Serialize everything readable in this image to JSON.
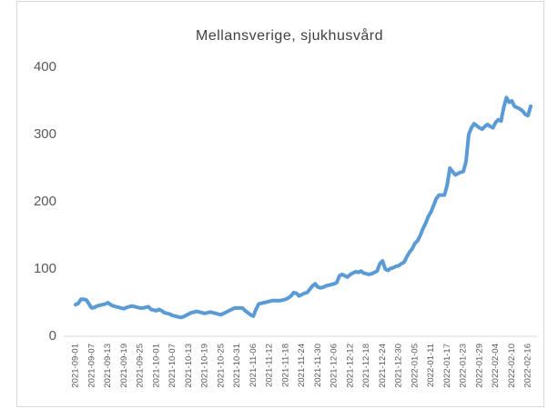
{
  "chart_data": {
    "type": "line",
    "title": "Mellansverige, sjukhusvård",
    "categories": [
      "2021-09-01",
      null,
      null,
      null,
      null,
      null,
      "2021-09-07",
      null,
      null,
      null,
      null,
      null,
      "2021-09-13",
      null,
      null,
      null,
      null,
      null,
      "2021-09-19",
      null,
      null,
      null,
      null,
      null,
      "2021-09-25",
      null,
      null,
      null,
      null,
      null,
      "2021-10-01",
      null,
      null,
      null,
      null,
      null,
      "2021-10-07",
      null,
      null,
      null,
      null,
      null,
      "2021-10-13",
      null,
      null,
      null,
      null,
      null,
      "2021-10-19",
      null,
      null,
      null,
      null,
      null,
      "2021-10-25",
      null,
      null,
      null,
      null,
      null,
      "2021-10-31",
      null,
      null,
      null,
      null,
      null,
      "2021-11-06",
      null,
      null,
      null,
      null,
      null,
      "2021-11-12",
      null,
      null,
      null,
      null,
      null,
      "2021-11-18",
      null,
      null,
      null,
      null,
      null,
      "2021-11-24",
      null,
      null,
      null,
      null,
      null,
      "2021-11-30",
      null,
      null,
      null,
      null,
      null,
      "2021-12-06",
      null,
      null,
      null,
      null,
      null,
      "2021-12-12",
      null,
      null,
      null,
      null,
      null,
      "2021-12-18",
      null,
      null,
      null,
      null,
      null,
      "2021-12-24",
      null,
      null,
      null,
      null,
      null,
      "2021-12-30",
      null,
      null,
      null,
      null,
      null,
      "2022-01-05",
      null,
      null,
      null,
      null,
      null,
      "2022-01-11",
      null,
      null,
      null,
      null,
      null,
      "2022-01-17",
      null,
      null,
      null,
      null,
      null,
      "2022-01-23",
      null,
      null,
      null,
      null,
      null,
      "2022-01-29",
      null,
      null,
      null,
      null,
      null,
      "2022-02-04",
      null,
      null,
      null,
      null,
      null,
      "2022-02-10",
      null,
      null,
      null,
      null,
      null,
      "2022-02-16",
      null
    ],
    "values": [
      47,
      49,
      55,
      55,
      54,
      48,
      42,
      43,
      45,
      46,
      47,
      48,
      50,
      47,
      45,
      44,
      43,
      42,
      41,
      43,
      44,
      45,
      44,
      43,
      42,
      42,
      43,
      44,
      40,
      39,
      38,
      40,
      38,
      35,
      34,
      33,
      31,
      30,
      29,
      28,
      29,
      31,
      33,
      35,
      36,
      37,
      36,
      35,
      34,
      35,
      36,
      35,
      34,
      33,
      32,
      34,
      36,
      38,
      40,
      42,
      42,
      42,
      42,
      38,
      35,
      32,
      30,
      40,
      48,
      49,
      50,
      51,
      52,
      53,
      53,
      53,
      53,
      54,
      55,
      57,
      60,
      65,
      64,
      60,
      62,
      64,
      65,
      70,
      75,
      78,
      73,
      72,
      73,
      75,
      76,
      77,
      78,
      80,
      90,
      92,
      90,
      88,
      92,
      94,
      96,
      95,
      97,
      94,
      93,
      92,
      93,
      95,
      97,
      108,
      112,
      100,
      98,
      101,
      102,
      104,
      105,
      108,
      110,
      118,
      125,
      130,
      138,
      142,
      150,
      160,
      168,
      178,
      185,
      195,
      205,
      210,
      210,
      210,
      225,
      250,
      245,
      240,
      242,
      244,
      245,
      260,
      300,
      310,
      316,
      313,
      310,
      308,
      312,
      315,
      312,
      310,
      318,
      322,
      320,
      340,
      355,
      348,
      350,
      342,
      340,
      338,
      335,
      330,
      328,
      342
    ],
    "color": "#5b9bd5",
    "ylim": [
      0,
      400
    ],
    "yticks": [
      0,
      100,
      200,
      300,
      400
    ],
    "grid": false
  }
}
